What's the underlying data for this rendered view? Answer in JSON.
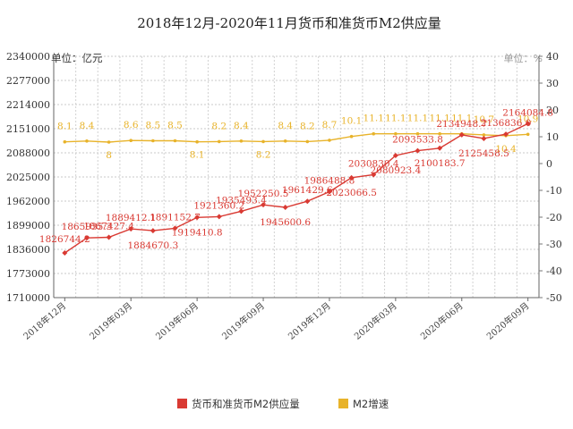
{
  "chart_data": {
    "type": "line",
    "title": "2018年12月-2020年11月货币和准货币M2供应量",
    "left_unit": "单位：亿元",
    "right_unit": "单位：%",
    "y_left": {
      "min": 1710000,
      "max": 2340000,
      "step": 63000,
      "ticks": [
        "2340000",
        "2277000",
        "2214000",
        "2151000",
        "2088000",
        "2025000",
        "1962000",
        "1899000",
        "1836000",
        "1773000",
        "1710000"
      ]
    },
    "y_right": {
      "min": -50,
      "max": 40,
      "step": 10,
      "ticks": [
        "40",
        "30",
        "20",
        "10",
        "0",
        "-10",
        "-20",
        "-30",
        "-40",
        "-50"
      ]
    },
    "x_tick_labels": [
      "2018年12月",
      "2019年03月",
      "2019年06月",
      "2019年09月",
      "2019年12月",
      "2020年03月",
      "2020年06月",
      "2020年09月"
    ],
    "series": [
      {
        "name": "货币和准货币M2供应量",
        "color": "#d93a33",
        "axis": "left",
        "values": [
          1826744.2,
          1865935.3,
          1867427.4,
          1889412.1,
          1884670.3,
          1891152.7,
          1919410.8,
          1921360.2,
          1935493.4,
          1952250.5,
          1945600.6,
          1961429.6,
          1986488.8,
          2023066.5,
          2030830.4,
          2080923.4,
          2093533.8,
          2100183.7,
          2134948.7,
          2125458.5,
          2136836.0,
          2164084.8
        ],
        "labels": [
          "1826744.2",
          "1865935.3",
          "1867427.4",
          "1889412.1",
          "1884670.3",
          "1891152.7",
          "1919410.8",
          "1921360.2",
          "1935493.4",
          "1952250.5",
          "1945600.6",
          "1961429.6",
          "1986488.8",
          "2023066.5",
          "2030830.4",
          "2080923.4",
          "2093533.8",
          "2100183.7",
          "2134948.7",
          "2125458.5",
          "2136836.0",
          "2164084.8"
        ]
      },
      {
        "name": "M2增速",
        "color": "#e8b32a",
        "axis": "right",
        "values": [
          8.1,
          8.4,
          8.0,
          8.6,
          8.5,
          8.5,
          8.1,
          8.2,
          8.4,
          8.2,
          8.4,
          8.2,
          8.7,
          10.1,
          11.1,
          11.1,
          11.1,
          11.1,
          11.1,
          10.7,
          10.4,
          10.9
        ],
        "labels": [
          "8.1",
          "8.4",
          "8",
          "8.6",
          "8.5",
          "8.5",
          "8.1",
          "8.2",
          "8.4",
          "8.2",
          "8.4",
          "8.2",
          "8.7",
          "10.1",
          "11.1",
          "11.1",
          "11.1",
          "11.1",
          "11.1",
          "10.7",
          "10.4",
          "10.9"
        ]
      }
    ],
    "legend_position": "bottom",
    "grid": true
  }
}
